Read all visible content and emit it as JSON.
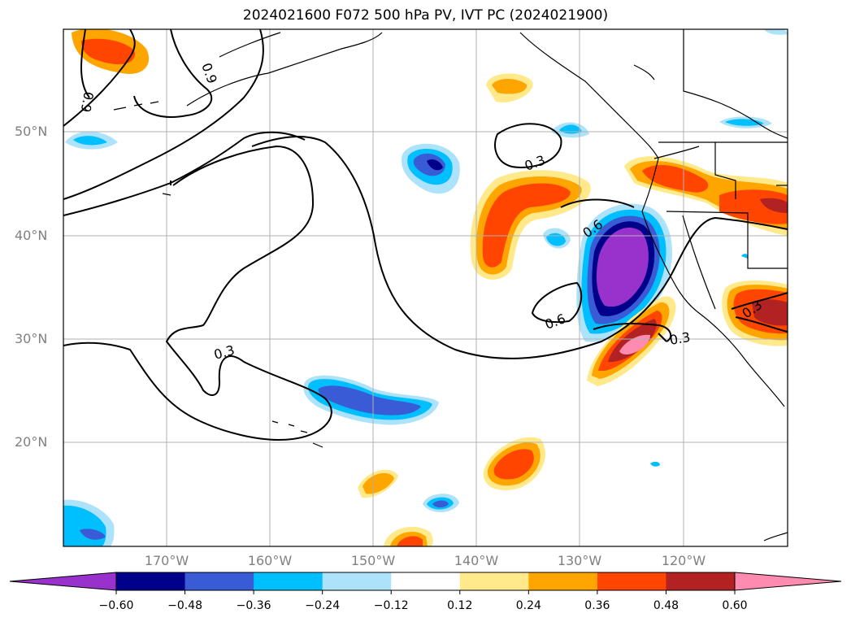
{
  "title": "2024021600 F072 500 hPa PV, IVT PC (2024021900)",
  "lat_labels": [
    "50°N",
    "40°N",
    "30°N",
    "20°N"
  ],
  "lon_labels": [
    "170°W",
    "160°W",
    "150°W",
    "140°W",
    "130°W",
    "120°W"
  ],
  "colorbar": {
    "ticks": [
      "−0.60",
      "−0.48",
      "−0.36",
      "−0.24",
      "−0.12",
      "0.12",
      "0.24",
      "0.36",
      "0.48",
      "0.60"
    ],
    "colors": [
      "#9932cc",
      "#00008b",
      "#3a5bd6",
      "#00bfff",
      "#ade3fa",
      "#ffffff",
      "#ffe98a",
      "#ffa500",
      "#ff4500",
      "#b22222",
      "#ff8bb0"
    ]
  },
  "contour_labels": [
    "0.9",
    "0.9",
    "0.3",
    "0.3",
    "0.6",
    "0.6",
    "0.3",
    "0.3"
  ],
  "colors": {
    "grid": "#b0b0b0",
    "axis_label": "#808080",
    "contour": "#000000"
  }
}
